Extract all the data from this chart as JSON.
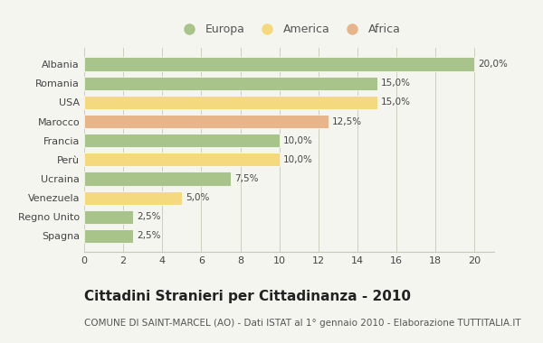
{
  "categories": [
    "Albania",
    "Romania",
    "USA",
    "Marocco",
    "Francia",
    "Perù",
    "Ucraina",
    "Venezuela",
    "Regno Unito",
    "Spagna"
  ],
  "values": [
    20.0,
    15.0,
    15.0,
    12.5,
    10.0,
    10.0,
    7.5,
    5.0,
    2.5,
    2.5
  ],
  "colors": [
    "#a8c48a",
    "#a8c48a",
    "#f5d97e",
    "#e8b48a",
    "#a8c48a",
    "#f5d97e",
    "#a8c48a",
    "#f5d97e",
    "#a8c48a",
    "#a8c48a"
  ],
  "labels": [
    "20,0%",
    "15,0%",
    "15,0%",
    "12,5%",
    "10,0%",
    "10,0%",
    "7,5%",
    "5,0%",
    "2,5%",
    "2,5%"
  ],
  "legend_labels": [
    "Europa",
    "America",
    "Africa"
  ],
  "legend_colors": [
    "#a8c48a",
    "#f5d97e",
    "#e8b48a"
  ],
  "title": "Cittadini Stranieri per Cittadinanza - 2010",
  "subtitle": "COMUNE DI SAINT-MARCEL (AO) - Dati ISTAT al 1° gennaio 2010 - Elaborazione TUTTITALIA.IT",
  "xlim": [
    0,
    21
  ],
  "xticks": [
    0,
    2,
    4,
    6,
    8,
    10,
    12,
    14,
    16,
    18,
    20
  ],
  "bg_color": "#f5f5f0",
  "bar_edge_color": "white",
  "grid_color": "#c8c8b8",
  "title_fontsize": 11,
  "subtitle_fontsize": 7.5,
  "label_fontsize": 7.5,
  "tick_fontsize": 8,
  "legend_fontsize": 9
}
